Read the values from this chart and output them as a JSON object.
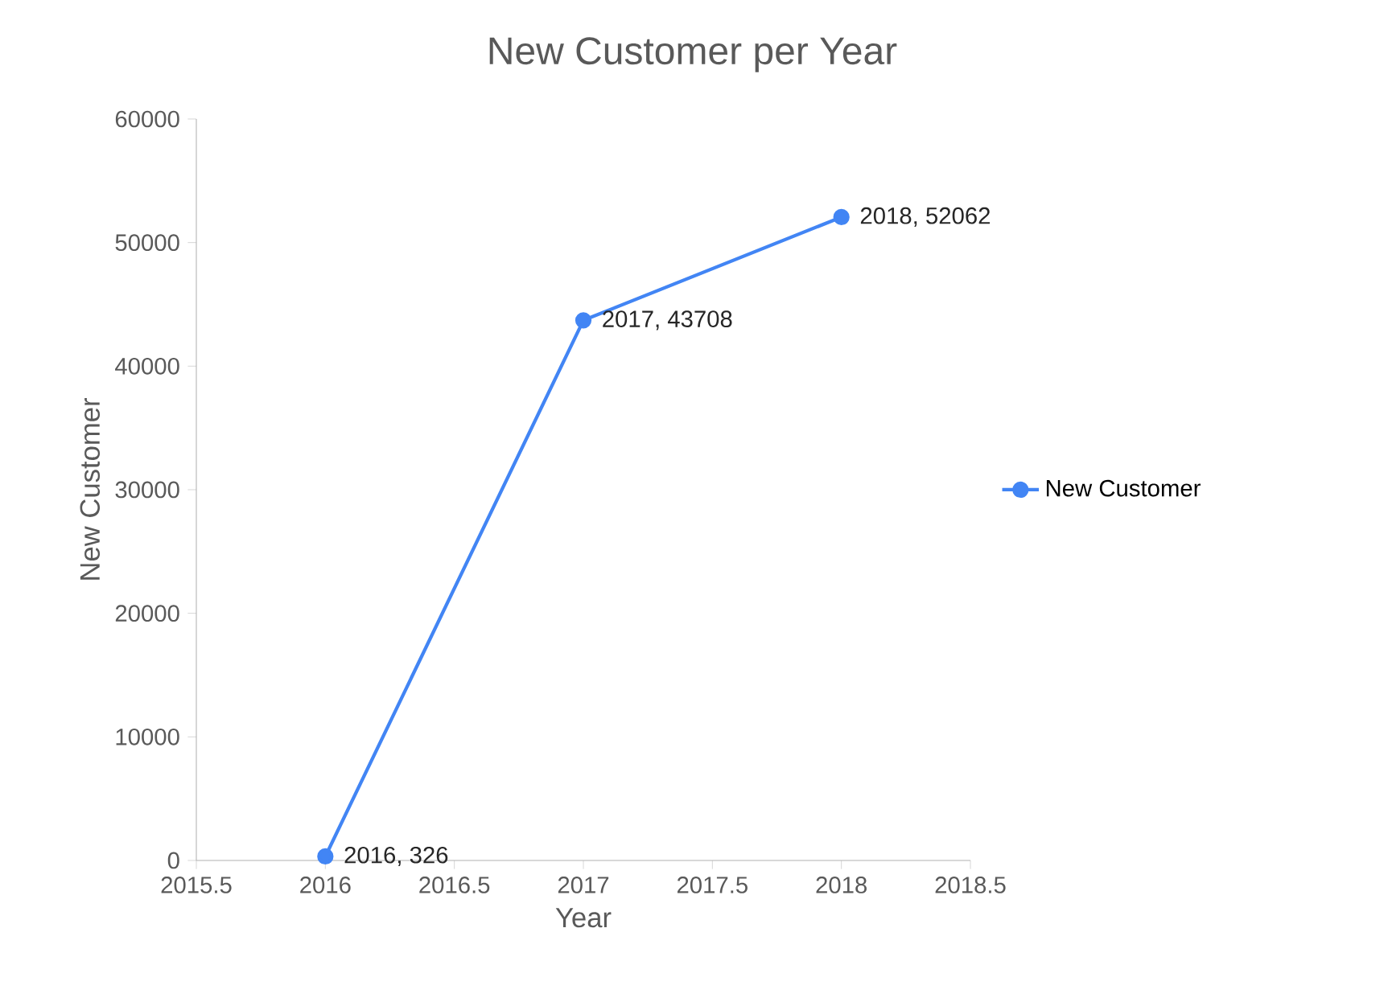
{
  "chart_data": {
    "type": "line",
    "title": "New Customer per Year",
    "xlabel": "Year",
    "ylabel": "New Customer",
    "x": [
      2016,
      2017,
      2018
    ],
    "series": [
      {
        "name": "New Customer",
        "color": "#4285f4",
        "values": [
          326,
          43708,
          52062
        ],
        "value_labels": [
          "2016, 326",
          "2017, 43708",
          "2018, 52062"
        ]
      }
    ],
    "xlim": [
      2015.5,
      2018.5
    ],
    "xticks": [
      2015.5,
      2016,
      2016.5,
      2017,
      2017.5,
      2018,
      2018.5
    ],
    "ylim": [
      0,
      60000
    ],
    "yticks": [
      0,
      10000,
      20000,
      30000,
      40000,
      50000,
      60000
    ],
    "legend": "right",
    "marker": "circle",
    "grid": false
  }
}
